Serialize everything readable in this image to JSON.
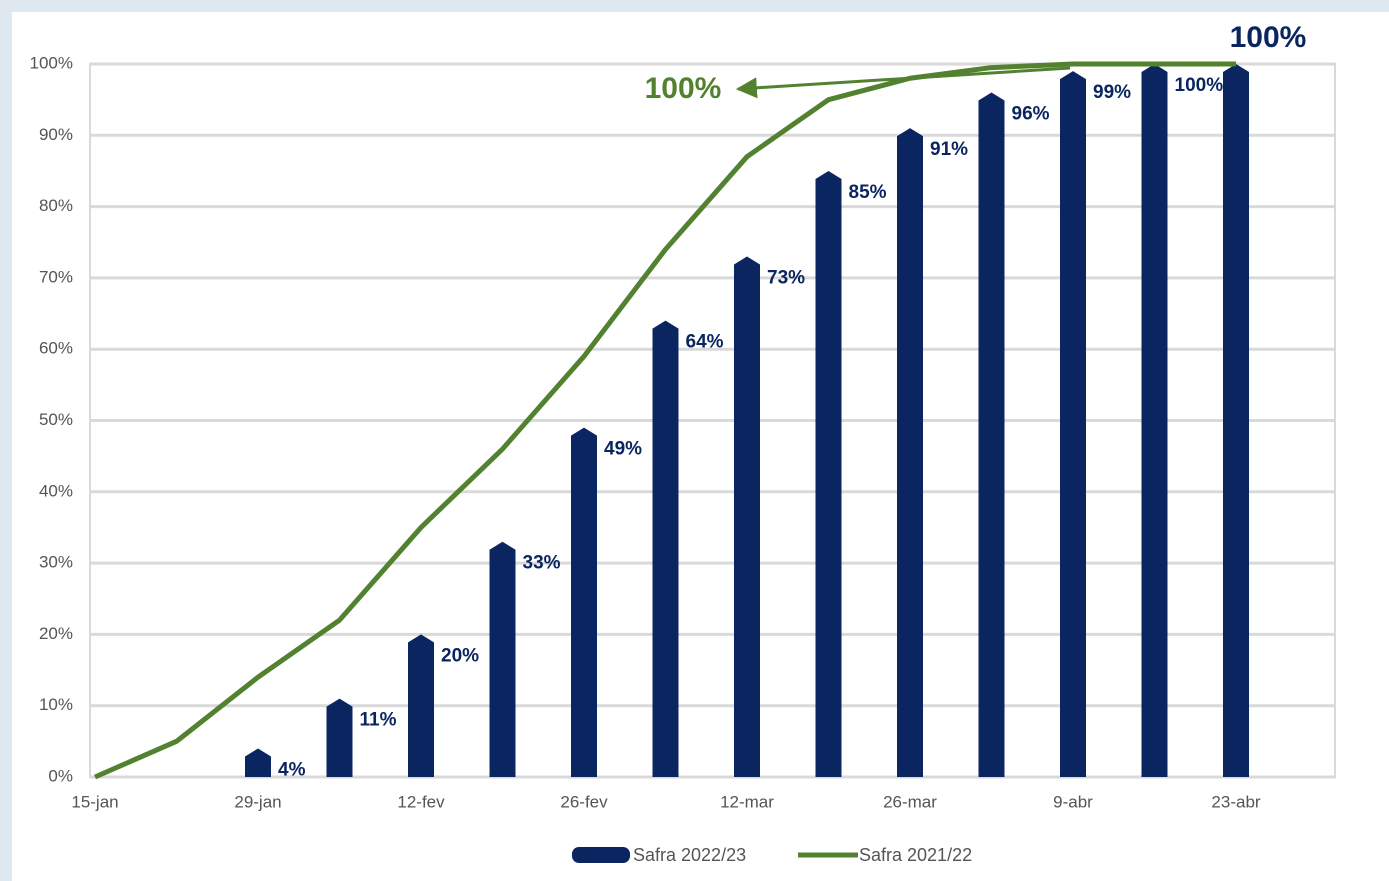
{
  "chart_data": {
    "type": "bar",
    "categories": [
      "15-jan",
      null,
      "29-jan",
      null,
      "12-fev",
      null,
      "26-fev",
      null,
      "12-mar",
      null,
      "26-mar",
      null,
      "9-abr",
      null,
      "23-abr"
    ],
    "series": [
      {
        "name": "Safra 2022/23",
        "type": "bar",
        "color": "#0b2560",
        "values": [
          null,
          null,
          4,
          11,
          20,
          33,
          49,
          64,
          73,
          85,
          91,
          96,
          99,
          100,
          100
        ],
        "value_labels": [
          null,
          null,
          "4%",
          "11%",
          "20%",
          "33%",
          "49%",
          "64%",
          "73%",
          "85%",
          "91%",
          "96%",
          "99%",
          "100%",
          "100%"
        ]
      },
      {
        "name": "Safra 2021/22",
        "type": "line",
        "color": "#52812f",
        "values": [
          0,
          5,
          14,
          22,
          35,
          46,
          59,
          74,
          87,
          95,
          98,
          99.5,
          100,
          100,
          100
        ]
      }
    ],
    "annotations": [
      {
        "text": "100%",
        "color": "#52812f"
      }
    ],
    "ylim": [
      0,
      100
    ],
    "yticks": [
      {
        "value": 0,
        "label": "0%"
      },
      {
        "value": 10,
        "label": "10%"
      },
      {
        "value": 20,
        "label": "20%"
      },
      {
        "value": 30,
        "label": "30%"
      },
      {
        "value": 40,
        "label": "40%"
      },
      {
        "value": 50,
        "label": "50%"
      },
      {
        "value": 60,
        "label": "60%"
      },
      {
        "value": 70,
        "label": "70%"
      },
      {
        "value": 80,
        "label": "80%"
      },
      {
        "value": 90,
        "label": "90%"
      },
      {
        "value": 100,
        "label": "100%"
      }
    ],
    "grid": true
  }
}
